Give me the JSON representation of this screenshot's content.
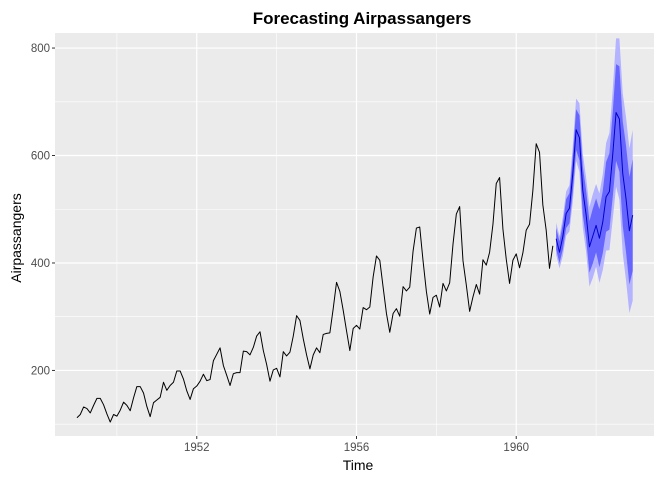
{
  "chart_data": {
    "type": "line",
    "title": "Forecasting Airpassangers",
    "xlabel": "Time",
    "ylabel": "Airpassangers",
    "xlim": [
      1948.45,
      1963.45
    ],
    "ylim": [
      78,
      828
    ],
    "x_ticks": [
      1952,
      1956,
      1960
    ],
    "y_ticks": [
      200,
      400,
      600,
      800
    ],
    "grid": true,
    "legend": "none",
    "colors": {
      "panel": "#EBEBEB",
      "grid": "#FFFFFF",
      "history_line": "#000000",
      "forecast_line": "#0000CC",
      "band_95": "#B3B3FF",
      "band_80": "#6666FF"
    },
    "series": [
      {
        "start": 1949.0,
        "step": 0.0833333,
        "values": [
          112,
          118,
          132,
          129,
          121,
          135,
          148,
          148,
          136,
          119,
          104,
          118,
          115,
          126,
          141,
          135,
          125,
          149,
          170,
          170,
          158,
          133,
          114,
          140,
          145,
          150,
          178,
          163,
          172,
          178,
          199,
          199,
          184,
          162,
          146,
          166,
          171,
          180,
          193,
          181,
          183,
          218,
          230,
          242,
          209,
          191,
          172,
          194,
          196,
          196,
          236,
          235,
          229,
          243,
          264,
          272,
          237,
          211,
          180,
          201,
          204,
          188,
          235,
          227,
          234,
          264,
          302,
          293,
          259,
          229,
          203,
          229,
          242,
          233,
          267,
          269,
          270,
          315,
          364,
          347,
          312,
          274,
          237,
          278,
          284,
          277,
          317,
          313,
          318,
          374,
          413,
          405,
          355,
          306,
          271,
          306,
          315,
          301,
          356,
          348,
          355,
          422,
          465,
          467,
          404,
          347,
          305,
          336,
          340,
          318,
          362,
          348,
          363,
          435,
          491,
          505,
          404,
          359,
          310,
          337,
          360,
          342,
          406,
          396,
          420,
          472,
          548,
          559,
          463,
          407,
          362,
          405,
          417,
          391,
          419,
          461,
          472,
          535,
          622,
          606,
          508,
          461,
          390,
          432
        ]
      },
      {
        "start": 1961.0,
        "step": 0.0833333,
        "values": [
          445,
          420,
          449,
          492,
          502,
          566,
          648,
          633,
          535,
          490,
          430,
          450,
          470,
          446,
          476,
          523,
          533,
          602,
          680,
          668,
          567,
          519,
          460,
          489
        ],
        "lo80": [
          425,
          400,
          425,
          465,
          474,
          532,
          610,
          591,
          490,
          445,
          382,
          399,
          420,
          392,
          418,
          458,
          462,
          523,
          590,
          570,
          470,
          420,
          360,
          385
        ],
        "hi80": [
          465,
          440,
          473,
          519,
          530,
          600,
          686,
          675,
          580,
          535,
          478,
          501,
          520,
          500,
          534,
          588,
          604,
          681,
          770,
          766,
          664,
          618,
          560,
          593
        ],
        "lo95": [
          415,
          390,
          413,
          451,
          459,
          514,
          590,
          569,
          466,
          421,
          356,
          372,
          393,
          363,
          387,
          423,
          424,
          481,
          542,
          518,
          418,
          367,
          307,
          330
        ],
        "hi95": [
          475,
          450,
          485,
          533,
          545,
          618,
          706,
          697,
          604,
          559,
          504,
          528,
          547,
          529,
          565,
          623,
          642,
          723,
          818,
          818,
          716,
          671,
          613,
          648
        ]
      }
    ]
  }
}
